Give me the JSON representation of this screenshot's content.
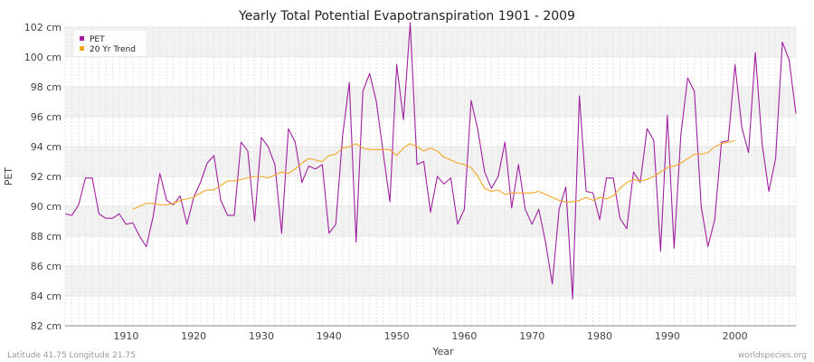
{
  "chart_data": {
    "type": "line",
    "title": "Yearly Total Potential Evapotranspiration 1901 - 2009",
    "xlabel": "Year",
    "ylabel": "PET",
    "y_unit": "cm",
    "xlim": [
      1901,
      2009
    ],
    "ylim": [
      82,
      102
    ],
    "x_ticks": [
      1910,
      1920,
      1930,
      1940,
      1950,
      1960,
      1970,
      1980,
      1990,
      2000
    ],
    "y_ticks": [
      82,
      84,
      86,
      88,
      90,
      92,
      94,
      96,
      98,
      100,
      102
    ],
    "y_tick_labels": [
      "82 cm",
      "84 cm",
      "86 cm",
      "88 cm",
      "90 cm",
      "92 cm",
      "94 cm",
      "96 cm",
      "98 cm",
      "100 cm",
      "102 cm"
    ],
    "x_tick_labels": [
      "1910",
      "1920",
      "1930",
      "1940",
      "1950",
      "1960",
      "1970",
      "1980",
      "1990",
      "2000"
    ],
    "grid": true,
    "legend_position": "top-left",
    "series": [
      {
        "name": "PET",
        "color": "#a020a0",
        "x_start": 1901,
        "values": [
          89.5,
          89.4,
          90.1,
          91.9,
          91.9,
          89.5,
          89.2,
          89.2,
          89.5,
          88.8,
          88.9,
          88.0,
          87.3,
          89.3,
          92.2,
          90.4,
          90.1,
          90.7,
          88.8,
          90.6,
          91.6,
          92.9,
          93.4,
          90.4,
          89.4,
          89.4,
          94.3,
          93.7,
          89.0,
          94.6,
          94.0,
          92.8,
          88.2,
          95.2,
          94.3,
          91.6,
          92.7,
          92.5,
          92.8,
          88.2,
          88.8,
          94.7,
          98.3,
          87.6,
          97.7,
          98.9,
          97.0,
          93.6,
          90.3,
          99.5,
          95.8,
          102.3,
          92.8,
          93.0,
          89.6,
          92.0,
          91.5,
          91.9,
          88.8,
          89.8,
          97.1,
          95.1,
          92.3,
          91.2,
          92.0,
          94.3,
          89.9,
          92.8,
          89.8,
          88.8,
          89.8,
          87.6,
          84.8,
          89.8,
          91.3,
          83.8,
          97.4,
          91.0,
          90.9,
          89.1,
          91.9,
          91.9,
          89.2,
          88.5,
          92.3,
          91.6,
          95.2,
          94.4,
          87.0,
          96.1,
          87.2,
          94.8,
          98.6,
          97.7,
          90.0,
          87.3,
          89.1,
          94.3,
          94.4,
          99.5,
          95.3,
          93.6,
          100.3,
          94.2,
          91.0,
          93.2,
          101.0,
          99.8,
          96.2
        ]
      },
      {
        "name": "20 Yr Trend",
        "color": "#f5a623",
        "x": [
          1911,
          1912,
          1913,
          1914,
          1915,
          1916,
          1917,
          1918,
          1919,
          1920,
          1921,
          1922,
          1923,
          1924,
          1925,
          1926,
          1927,
          1928,
          1929,
          1930,
          1931,
          1932,
          1933,
          1934,
          1935,
          1936,
          1937,
          1938,
          1939,
          1940,
          1941,
          1942,
          1943,
          1944,
          1945,
          1946,
          1947,
          1948,
          1949,
          1950,
          1951,
          1952,
          1953,
          1954,
          1955,
          1956,
          1957,
          1958,
          1959,
          1960,
          1961,
          1962,
          1963,
          1964,
          1965,
          1966,
          1967,
          1968,
          1969,
          1970,
          1971,
          1972,
          1973,
          1974,
          1975,
          1976,
          1977,
          1978,
          1979,
          1980,
          1981,
          1982,
          1983,
          1984,
          1985,
          1986,
          1987,
          1988,
          1989,
          1990,
          1991,
          1992,
          1993,
          1994,
          1995,
          1996,
          1997,
          1998,
          1999,
          2000
        ],
        "values": [
          89.8,
          90.0,
          90.2,
          90.2,
          90.1,
          90.1,
          90.2,
          90.4,
          90.5,
          90.6,
          90.9,
          91.1,
          91.1,
          91.4,
          91.7,
          91.7,
          91.8,
          91.9,
          92.0,
          92.0,
          91.9,
          92.1,
          92.3,
          92.2,
          92.5,
          92.9,
          93.2,
          93.1,
          93.0,
          93.4,
          93.5,
          93.9,
          94.0,
          94.2,
          93.9,
          93.8,
          93.8,
          93.8,
          93.8,
          93.4,
          93.9,
          94.2,
          94.0,
          93.7,
          93.9,
          93.7,
          93.3,
          93.1,
          92.9,
          92.8,
          92.6,
          92.0,
          91.2,
          91.0,
          91.1,
          90.8,
          90.9,
          90.9,
          90.9,
          90.9,
          91.0,
          90.8,
          90.6,
          90.4,
          90.3,
          90.3,
          90.4,
          90.6,
          90.4,
          90.6,
          90.5,
          90.7,
          91.2,
          91.6,
          91.8,
          91.7,
          91.8,
          92.0,
          92.3,
          92.6,
          92.7,
          92.9,
          93.2,
          93.5,
          93.5,
          93.6,
          94.0,
          94.2,
          94.3,
          94.4
        ]
      }
    ]
  },
  "footer": {
    "location": "Latitude 41.75 Longitude 21.75",
    "source": "worldspecies.org"
  }
}
